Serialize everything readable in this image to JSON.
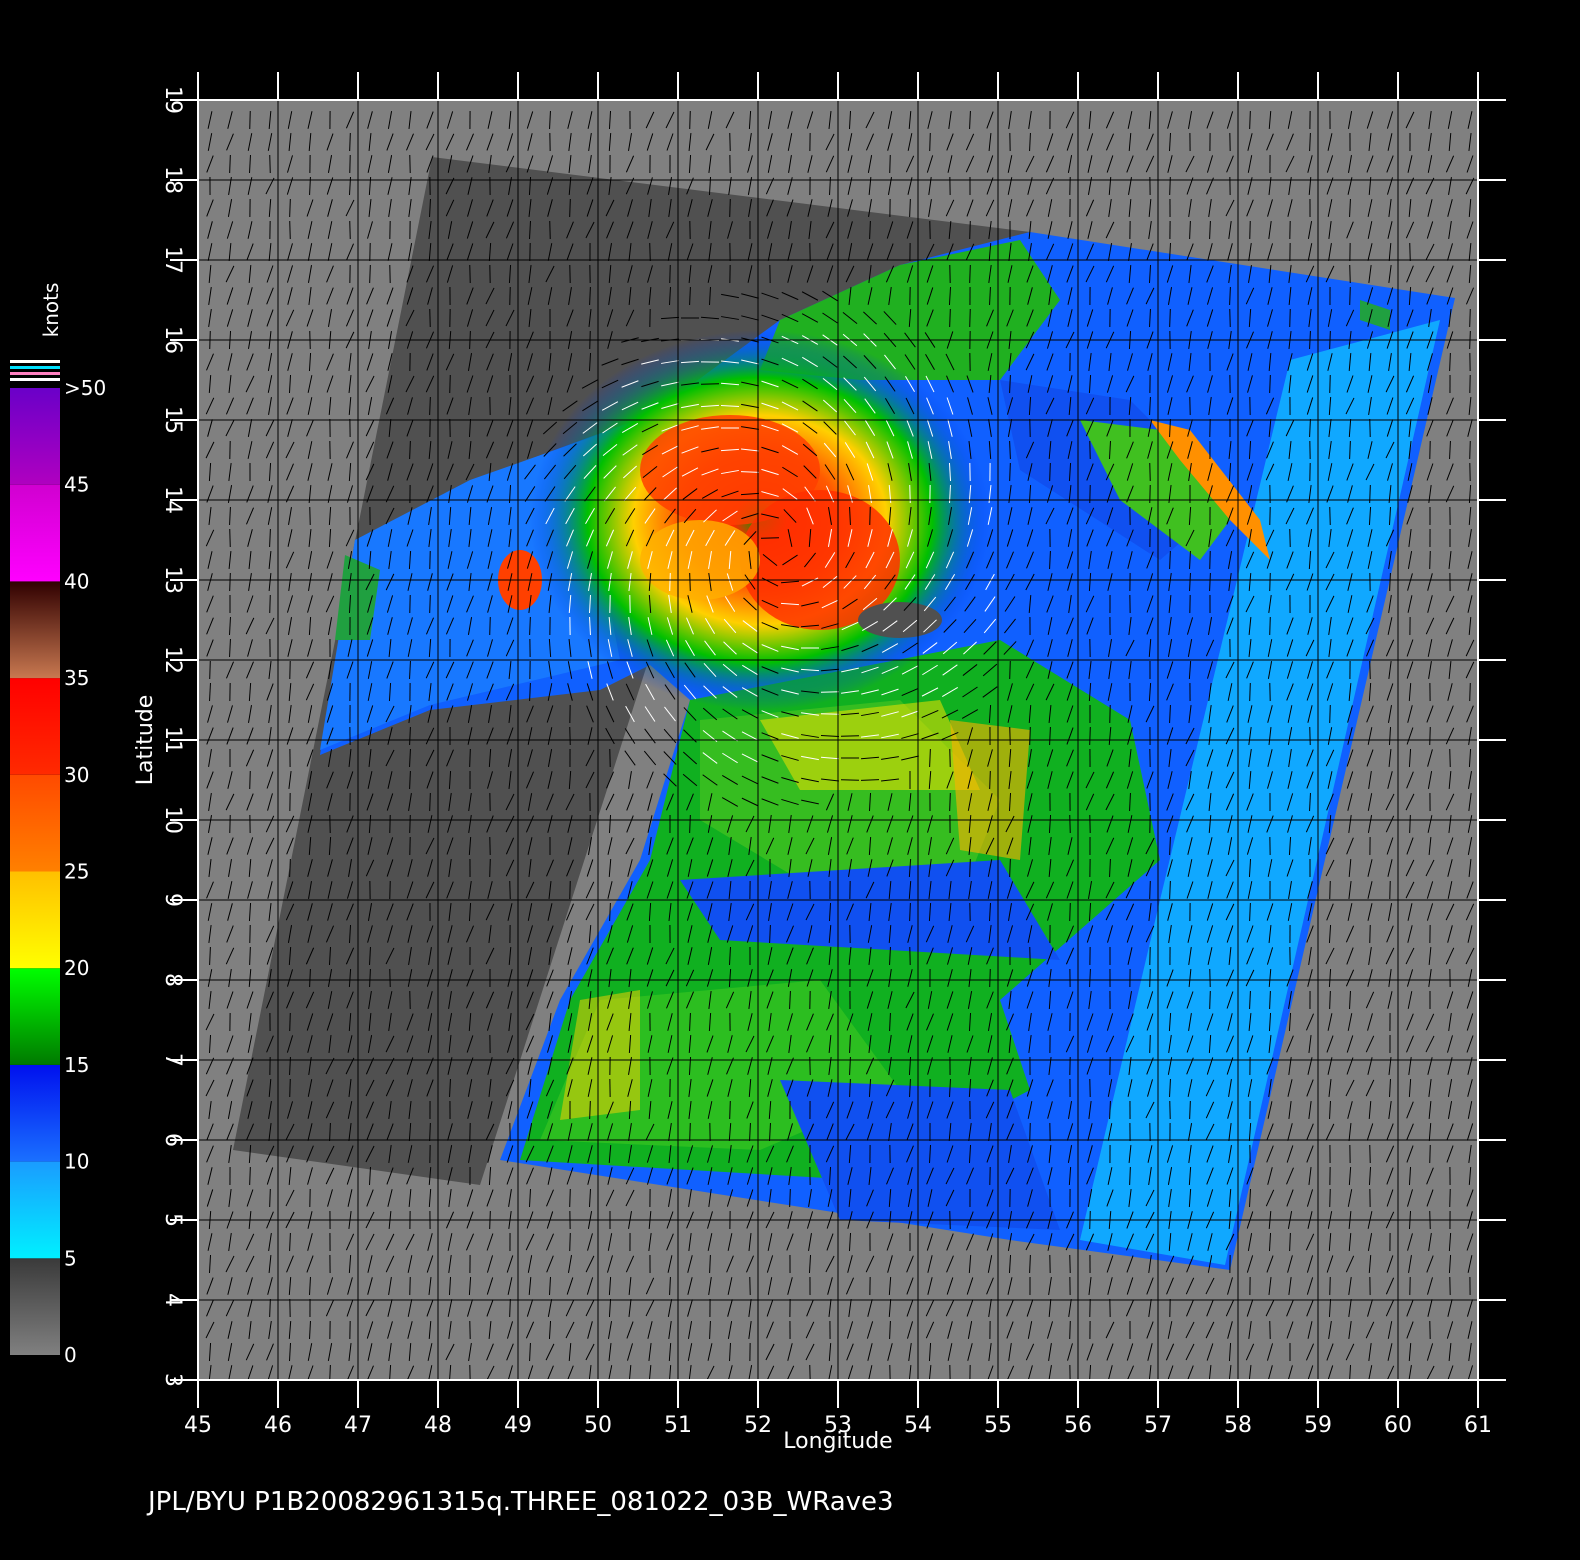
{
  "chart_data": {
    "type": "heatmap",
    "xlabel": "Longitude",
    "ylabel": "Latitude",
    "xlim": [
      45,
      61
    ],
    "ylim": [
      3,
      19
    ],
    "x_ticks": [
      "45",
      "46",
      "47",
      "48",
      "49",
      "50",
      "51",
      "52",
      "53",
      "54",
      "55",
      "56",
      "57",
      "58",
      "59",
      "60",
      "61"
    ],
    "y_ticks": [
      "3",
      "4",
      "5",
      "6",
      "7",
      "8",
      "9",
      "10",
      "11",
      "12",
      "13",
      "14",
      "15",
      "16",
      "17",
      "18",
      "19"
    ],
    "grid": true,
    "colorbar": {
      "title": "knots",
      "labels": [
        "0",
        "5",
        "10",
        "15",
        "20",
        "25",
        "30",
        "35",
        "40",
        "45",
        ">50"
      ],
      "bands": [
        {
          "from": 0,
          "to": 5,
          "colors": [
            "#808080",
            "#3a3a3a"
          ]
        },
        {
          "from": 5,
          "to": 10,
          "colors": [
            "#00f0ff",
            "#1a9cff"
          ]
        },
        {
          "from": 10,
          "to": 15,
          "colors": [
            "#1a70ff",
            "#0010ee"
          ]
        },
        {
          "from": 15,
          "to": 20,
          "colors": [
            "#007a00",
            "#00ff00"
          ]
        },
        {
          "from": 20,
          "to": 25,
          "colors": [
            "#ffff00",
            "#ffc000"
          ]
        },
        {
          "from": 25,
          "to": 30,
          "colors": [
            "#ff8000",
            "#ff4a00"
          ]
        },
        {
          "from": 30,
          "to": 35,
          "colors": [
            "#ff2a00",
            "#ff0000"
          ]
        },
        {
          "from": 35,
          "to": 40,
          "colors": [
            "#c87850",
            "#300000"
          ]
        },
        {
          "from": 40,
          "to": 45,
          "colors": [
            "#ff00ff",
            "#d000d0"
          ]
        },
        {
          "from": 45,
          "to": 50,
          "colors": [
            "#b000c0",
            "#6a00c8"
          ]
        }
      ]
    },
    "storm_center": {
      "lon": 52.2,
      "lat": 13.4
    },
    "swath_corners": [
      [
        55.3,
        17.3
      ],
      [
        60.8,
        16.5
      ],
      [
        57.7,
        4.3
      ],
      [
        48.7,
        5.6
      ]
    ],
    "footer": "JPL/BYU  P1B20082961315q.THREE_081022_03B_WRave3"
  },
  "colors": {
    "background": "#000000",
    "plot_gray": "#808080",
    "land_gray": "#505050",
    "grid": "#000000",
    "frame": "#ffffff"
  }
}
